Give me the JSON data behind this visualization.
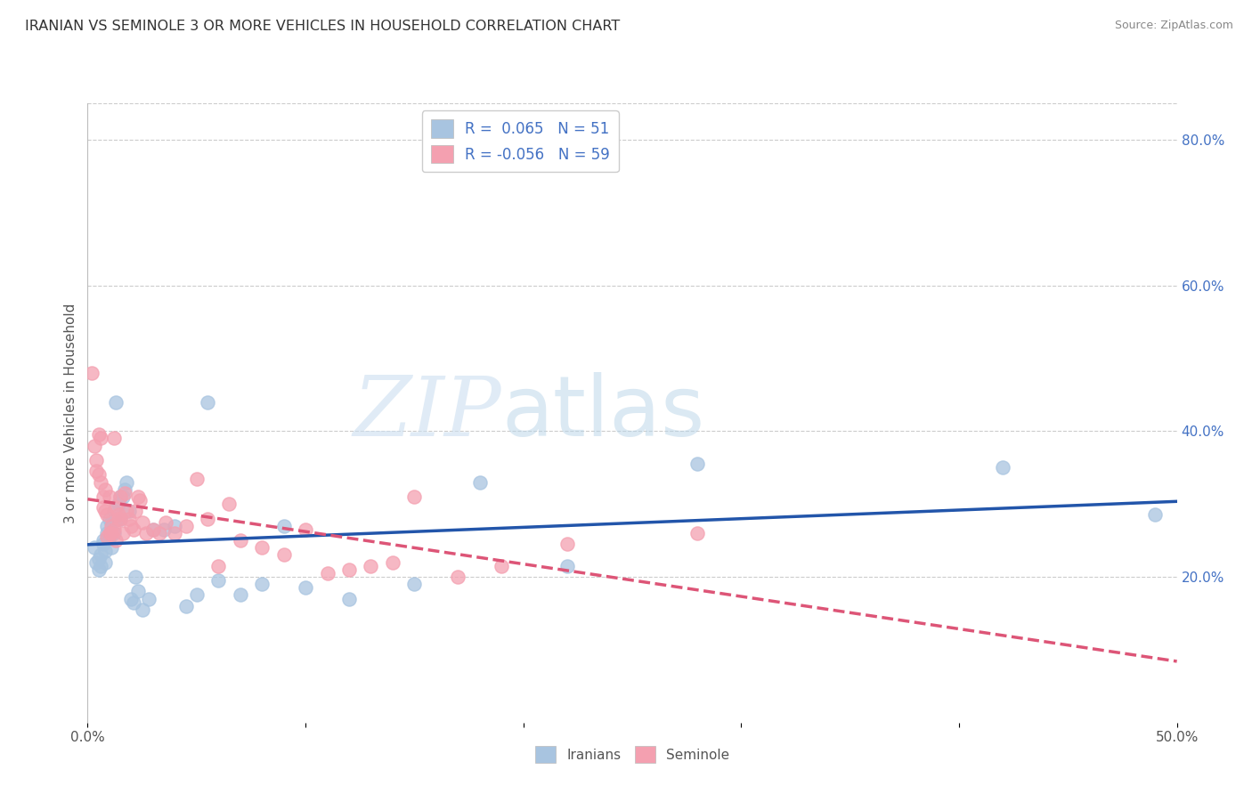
{
  "title": "IRANIAN VS SEMINOLE 3 OR MORE VEHICLES IN HOUSEHOLD CORRELATION CHART",
  "source": "Source: ZipAtlas.com",
  "ylabel": "3 or more Vehicles in Household",
  "xmin": 0.0,
  "xmax": 50.0,
  "ymin": 0.0,
  "ymax": 85.0,
  "x_ticks": [
    0.0,
    10.0,
    20.0,
    30.0,
    40.0,
    50.0
  ],
  "x_tick_labels": [
    "0.0%",
    "",
    "",
    "",
    "",
    "50.0%"
  ],
  "y_ticks_right": [
    20.0,
    40.0,
    60.0,
    80.0
  ],
  "y_tick_labels_right": [
    "20.0%",
    "40.0%",
    "60.0%",
    "80.0%"
  ],
  "legend_iranians": "Iranians",
  "legend_seminole": "Seminole",
  "R_iranians": 0.065,
  "N_iranians": 51,
  "R_seminole": -0.056,
  "N_seminole": 59,
  "color_iranians": "#a8c4e0",
  "color_seminole": "#f4a0b0",
  "line_color_iranians": "#2255aa",
  "line_color_seminole": "#dd5577",
  "watermark_zip": "ZIP",
  "watermark_atlas": "atlas",
  "iranians_x": [
    0.3,
    0.4,
    0.5,
    0.5,
    0.6,
    0.6,
    0.7,
    0.7,
    0.8,
    0.8,
    0.9,
    0.9,
    1.0,
    1.0,
    1.1,
    1.1,
    1.2,
    1.2,
    1.3,
    1.3,
    1.4,
    1.5,
    1.5,
    1.6,
    1.7,
    1.8,
    1.9,
    2.0,
    2.1,
    2.2,
    2.3,
    2.5,
    2.8,
    3.0,
    3.5,
    4.0,
    4.5,
    5.0,
    5.5,
    6.0,
    7.0,
    8.0,
    9.0,
    10.0,
    12.0,
    15.0,
    18.0,
    22.0,
    28.0,
    42.0,
    49.0
  ],
  "iranians_y": [
    24.0,
    22.0,
    21.0,
    22.5,
    21.5,
    23.0,
    24.5,
    25.0,
    23.5,
    22.0,
    26.0,
    27.0,
    25.5,
    28.0,
    24.0,
    27.5,
    29.0,
    26.0,
    44.0,
    28.0,
    30.0,
    31.0,
    28.0,
    31.0,
    32.0,
    33.0,
    29.0,
    17.0,
    16.5,
    20.0,
    18.0,
    15.5,
    17.0,
    26.5,
    26.5,
    27.0,
    16.0,
    17.5,
    44.0,
    19.5,
    17.5,
    19.0,
    27.0,
    18.5,
    17.0,
    19.0,
    33.0,
    21.5,
    35.5,
    35.0,
    28.5
  ],
  "seminole_x": [
    0.2,
    0.3,
    0.4,
    0.4,
    0.5,
    0.5,
    0.6,
    0.6,
    0.7,
    0.7,
    0.8,
    0.8,
    0.9,
    0.9,
    1.0,
    1.0,
    1.1,
    1.1,
    1.2,
    1.2,
    1.3,
    1.3,
    1.4,
    1.4,
    1.5,
    1.5,
    1.6,
    1.7,
    1.8,
    1.9,
    2.0,
    2.1,
    2.2,
    2.3,
    2.4,
    2.5,
    2.7,
    3.0,
    3.3,
    3.6,
    4.0,
    4.5,
    5.0,
    5.5,
    6.0,
    6.5,
    7.0,
    8.0,
    9.0,
    10.0,
    11.0,
    12.0,
    13.0,
    14.0,
    15.0,
    17.0,
    19.0,
    22.0,
    28.0
  ],
  "seminole_y": [
    48.0,
    38.0,
    36.0,
    34.5,
    34.0,
    39.5,
    39.0,
    33.0,
    31.0,
    29.5,
    29.0,
    32.0,
    28.5,
    25.5,
    26.0,
    31.0,
    27.0,
    26.0,
    26.5,
    39.0,
    29.5,
    25.0,
    28.0,
    28.5,
    31.0,
    28.0,
    26.0,
    31.5,
    29.0,
    28.0,
    27.0,
    26.5,
    29.0,
    31.0,
    30.5,
    27.5,
    26.0,
    26.5,
    26.0,
    27.5,
    26.0,
    27.0,
    33.5,
    28.0,
    21.5,
    30.0,
    25.0,
    24.0,
    23.0,
    26.5,
    20.5,
    21.0,
    21.5,
    22.0,
    31.0,
    20.0,
    21.5,
    24.5,
    26.0
  ]
}
